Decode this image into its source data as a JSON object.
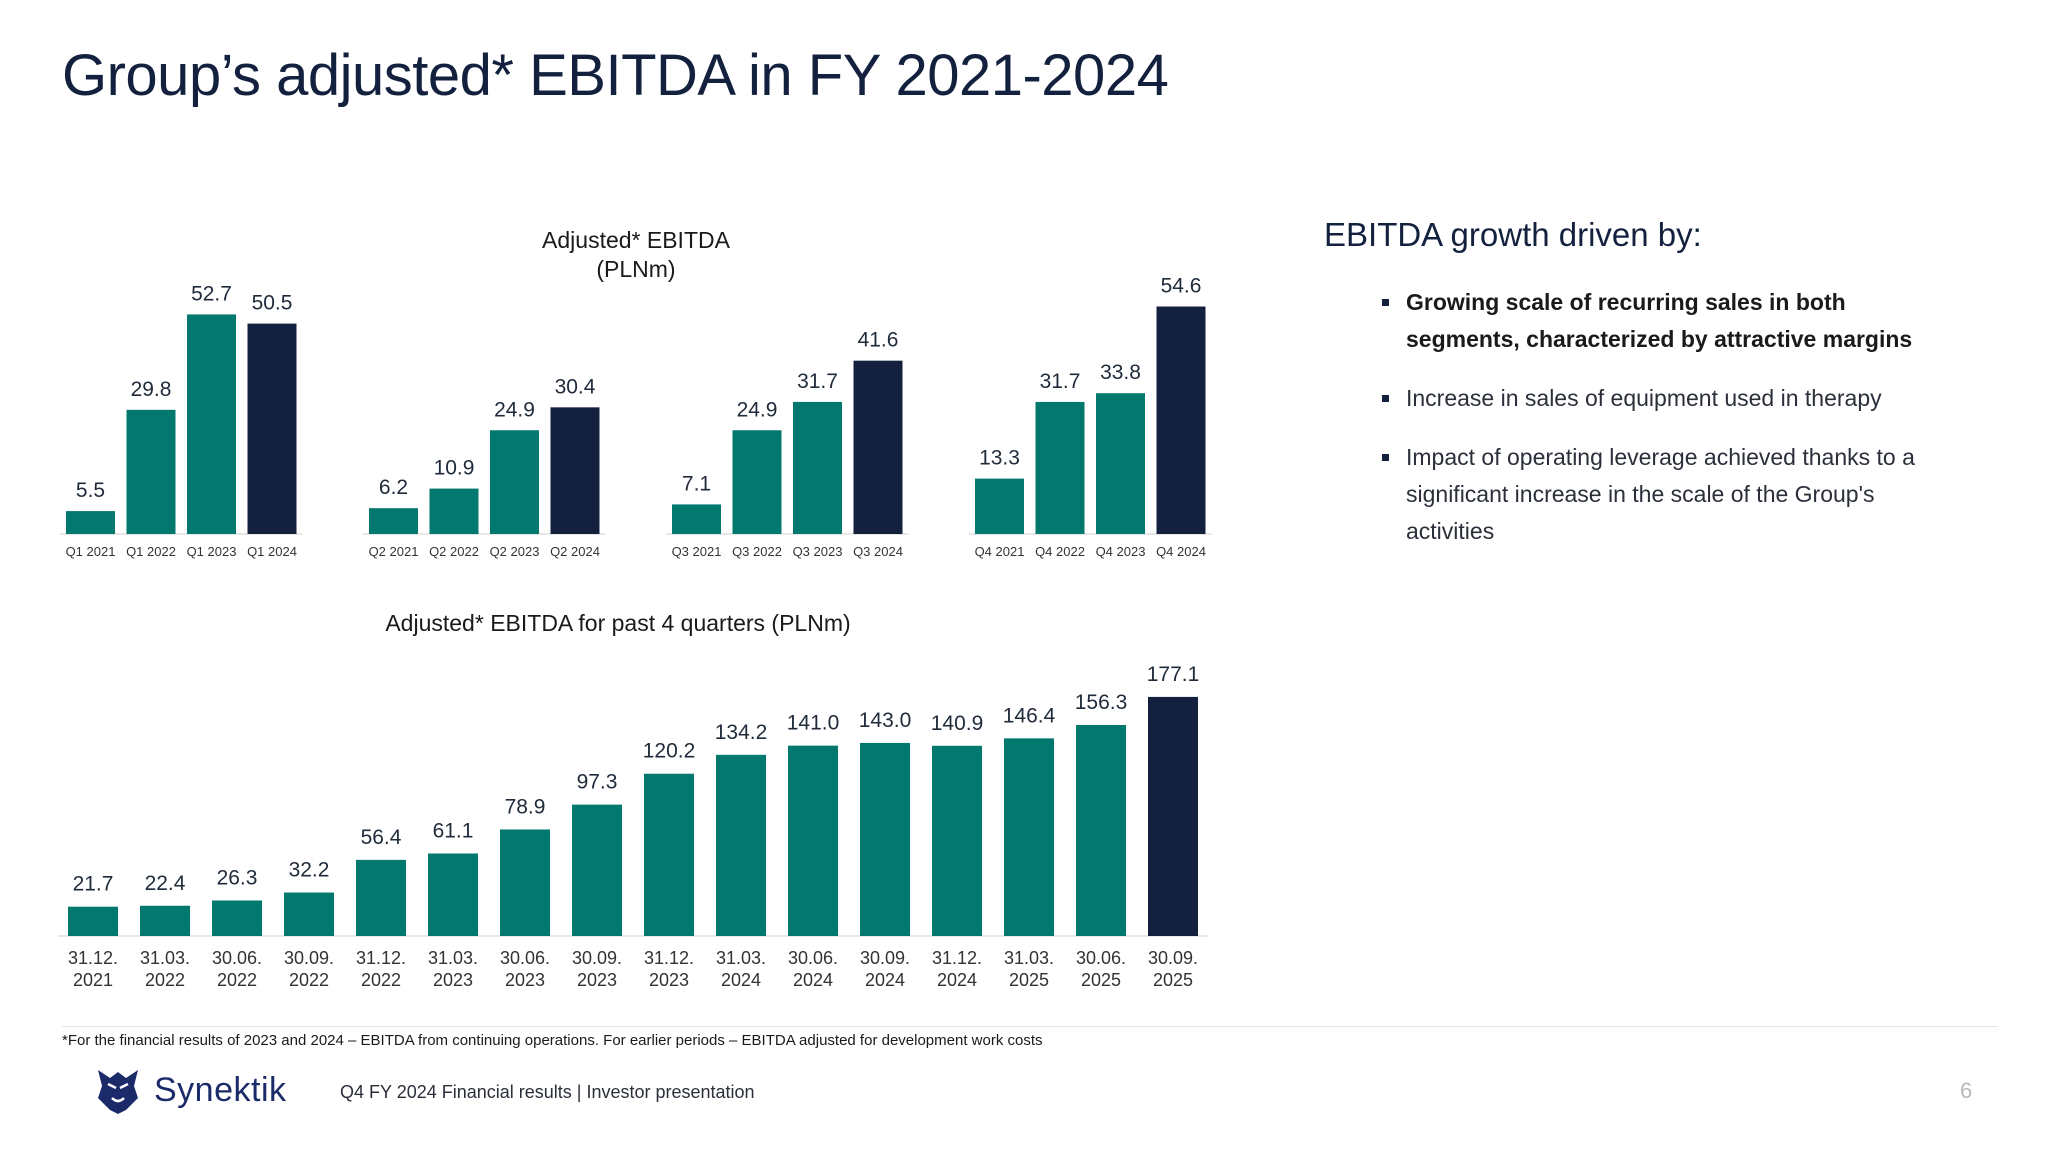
{
  "title": "Group’s adjusted* EBITDA in FY 2021-2024",
  "colors": {
    "teal": "#02786f",
    "navy": "#13213f",
    "axis": "#cfcfcf"
  },
  "chart_data": [
    {
      "type": "bar",
      "title": "Adjusted* EBITDA (PLNm)",
      "title_lines": [
        "Adjusted* EBITDA",
        "(PLNm)"
      ],
      "groups": [
        {
          "categories": [
            "Q1 2021",
            "Q1  2022",
            "Q1  2023",
            "Q1  2024"
          ],
          "values": [
            5.5,
            29.8,
            52.7,
            50.5
          ]
        },
        {
          "categories": [
            "Q2 2021",
            "Q2 2022",
            "Q2 2023",
            "Q2 2024"
          ],
          "values": [
            6.2,
            10.9,
            24.9,
            30.4
          ]
        },
        {
          "categories": [
            "Q3 2021",
            "Q3 2022",
            "Q3 2023",
            "Q3 2024"
          ],
          "values": [
            7.1,
            24.9,
            31.7,
            41.6
          ]
        },
        {
          "categories": [
            "Q4 2021",
            "Q4 2022",
            "Q4 2023",
            "Q4 2024"
          ],
          "values": [
            13.3,
            31.7,
            33.8,
            54.6
          ]
        }
      ],
      "highlight": "last bar of each group navy, others teal",
      "ylim": [
        0,
        60
      ]
    },
    {
      "type": "bar",
      "title": "Adjusted* EBITDA for past 4 quarters (PLNm)",
      "categories": [
        "31.12.|2021",
        "31.03.|2022",
        "30.06.|2022",
        "30.09.|2022",
        "31.12.|2022",
        "31.03.|2023",
        "30.06.|2023",
        "30.09.|2023",
        "31.12.|2023",
        "31.03.|2024",
        "30.06.|2024",
        "30.09.|2024",
        "31.12.|2024",
        "31.03.|2025",
        "30.06.|2025",
        "30.09.|2025"
      ],
      "values": [
        21.7,
        22.4,
        26.3,
        32.2,
        56.4,
        61.1,
        78.9,
        97.3,
        120.2,
        134.2,
        141.0,
        143.0,
        140.9,
        146.4,
        156.3,
        177.1
      ],
      "value_labels": [
        "21.7",
        "22.4",
        "26.3",
        "32.2",
        "56.4",
        "61.1",
        "78.9",
        "97.3",
        "120.2",
        "134.2",
        "141.0",
        "143.0",
        "140.9",
        "146.4",
        "156.3",
        "177.1"
      ],
      "highlight": "last bar navy, others teal",
      "ylim": [
        0,
        180
      ]
    }
  ],
  "drivers": {
    "heading": "EBITDA growth driven by:",
    "items": [
      "Growing scale of recurring sales in both segments, characterized by attractive margins",
      "Increase in sales of equipment used in therapy",
      "Impact of operating leverage achieved thanks to a significant increase in the scale of the Group's activities"
    ]
  },
  "footnote": "*For the financial results of 2023 and 2024 – EBITDA from continuing operations. For earlier periods – EBITDA adjusted for development work costs",
  "footer": {
    "logo_text": "Synektik",
    "logo_icon": "lion-head-icon",
    "presentation_text": "Q4 FY 2024 Financial results |  Investor presentation",
    "page_number": "6"
  }
}
